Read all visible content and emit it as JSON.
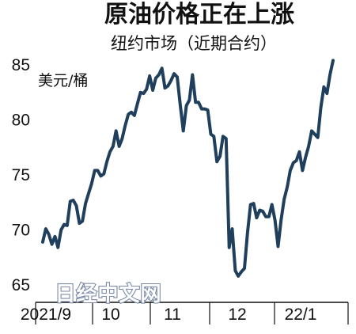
{
  "chart_data": {
    "type": "line",
    "title": "原油价格正在上涨",
    "subtitle": "纽约市场（近期合约）",
    "ylabel": "美元/桶",
    "y_ticks": [
      "85",
      "80",
      "75",
      "70",
      "65"
    ],
    "x_ticks": [
      "2021/9",
      "10",
      "11",
      "12",
      "22/1"
    ],
    "ylim": [
      64.5,
      87
    ],
    "grid": false,
    "color": "#1f3f5c",
    "series": [
      {
        "name": "",
        "values": [
          68.9,
          70.1,
          69.6,
          68.7,
          69.4,
          68.4,
          70.0,
          70.5,
          70.4,
          72.6,
          72.7,
          72.2,
          70.6,
          70.8,
          72.4,
          73.3,
          74.2,
          75.4,
          75.4,
          74.9,
          75.1,
          76.2,
          77.1,
          77.6,
          79.0,
          77.6,
          78.3,
          79.5,
          80.5,
          80.7,
          80.4,
          81.5,
          82.5,
          82.4,
          82.8,
          84.0,
          82.7,
          83.8,
          84.1,
          84.7,
          82.9,
          83.1,
          83.6,
          84.2,
          83.9,
          81.4,
          79.0,
          81.3,
          81.8,
          84.1,
          81.6,
          81.6,
          81.0,
          81.0,
          80.9,
          78.7,
          78.5,
          76.2,
          76.7,
          78.5,
          78.3,
          68.4,
          70.1,
          66.3,
          65.8,
          66.2,
          66.5,
          69.7,
          72.3,
          72.4,
          71.1,
          71.8,
          71.7,
          71.2,
          71.2,
          72.3,
          70.9,
          68.5,
          70.9,
          72.8,
          73.9,
          75.4,
          76.1,
          76.3,
          77.1,
          75.4,
          76.6,
          77.6,
          79.0,
          78.7,
          78.4,
          81.1,
          83.0,
          82.4,
          84.1,
          85.4
        ]
      }
    ]
  },
  "watermark": "日经中文网"
}
